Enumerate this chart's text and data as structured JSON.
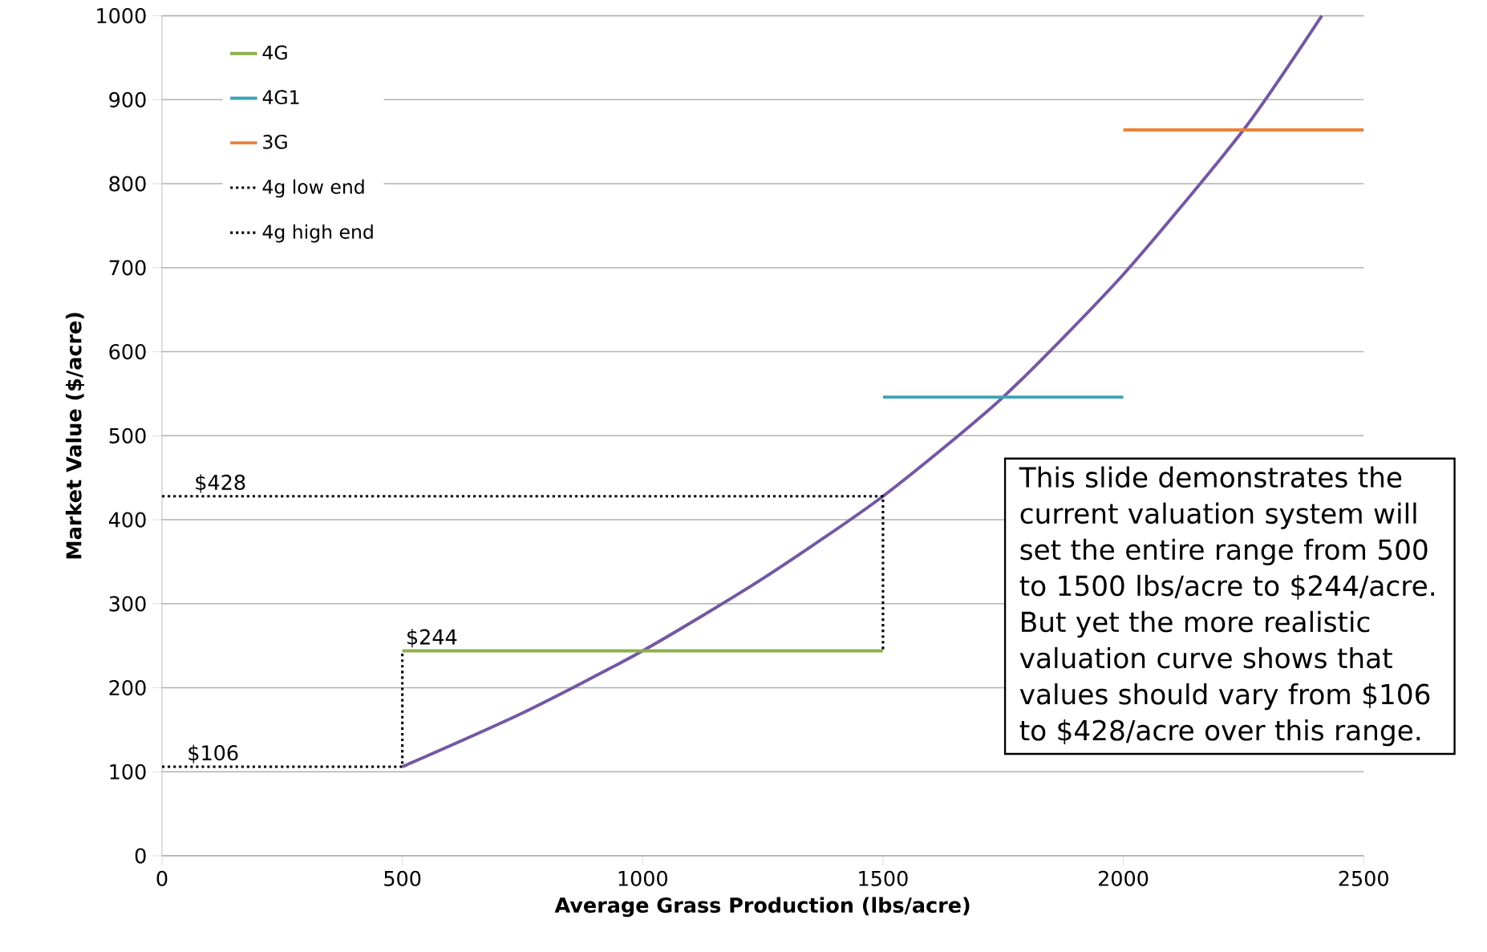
{
  "chart_data": {
    "type": "line",
    "xlabel": "Average Grass Production (lbs/acre)",
    "ylabel": "Market Value ($/acre)",
    "xlim": [
      0,
      2500
    ],
    "ylim": [
      0,
      1000
    ],
    "xticks": [
      0,
      500,
      1000,
      1500,
      2000,
      2500
    ],
    "yticks": [
      0,
      100,
      200,
      300,
      400,
      500,
      600,
      700,
      800,
      900,
      1000
    ],
    "grid": "y",
    "legend": "top left",
    "series": [
      {
        "color": "#7458a2",
        "x": [
          500,
          750,
          1000,
          1250,
          1500,
          1750,
          2000,
          2250,
          2413
        ],
        "values": [
          106,
          170,
          244,
          330,
          428,
          546,
          692,
          864,
          1000
        ]
      },
      {
        "name": "4G",
        "color": "#8db04a",
        "x": [
          500,
          1500
        ],
        "values": [
          244,
          244
        ]
      },
      {
        "name": "4G1",
        "color": "#3ca2ba",
        "x": [
          1500,
          2000
        ],
        "values": [
          546,
          546
        ]
      },
      {
        "name": "3G",
        "color": "#e8823a",
        "x": [
          2000,
          2500
        ],
        "values": [
          864,
          864
        ]
      },
      {
        "name": "4g low end",
        "color": "#000000",
        "line_style": "dotted",
        "x": [
          0,
          500,
          500
        ],
        "values": [
          106,
          106,
          244
        ]
      },
      {
        "name": "4g high end",
        "color": "#000000",
        "line_style": "dotted",
        "x": [
          0,
          1500,
          1500
        ],
        "values": [
          428,
          428,
          244
        ]
      }
    ],
    "annotations": [
      {
        "text": "$428",
        "x": 60,
        "y": 428
      },
      {
        "text": "$244",
        "x": 500,
        "y": 244
      },
      {
        "text": "$106",
        "x": 45,
        "y": 106
      },
      "This slide demonstrates the current valuation system will set the entire range from 500 to 1500 lbs/acre to $244/acre.   But yet the more realistic valuation curve shows that values should vary from $106 to $428/acre over this range."
    ]
  }
}
